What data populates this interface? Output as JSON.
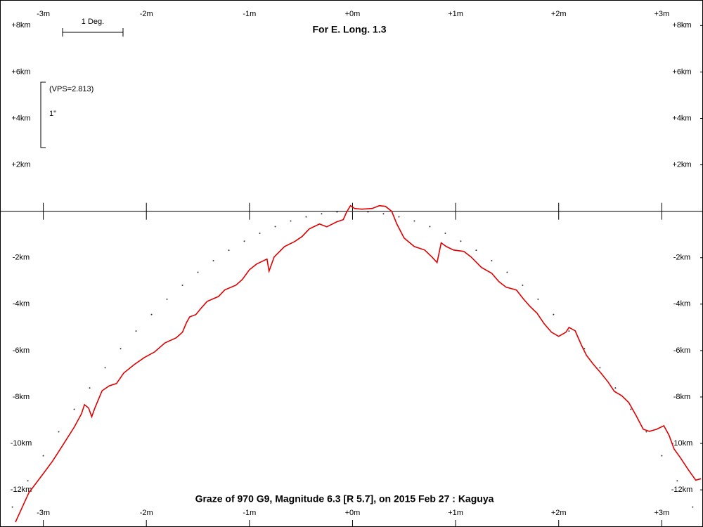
{
  "chart_data": {
    "type": "line",
    "title": "For E. Long. 1.3",
    "caption": "Graze of  970 G9,  Magnitude 6.3 [R 5.7],  on 2015 Feb 27  :  Kaguya",
    "scale_label": "1 Deg.",
    "vps_label": "(VPS=2.813)",
    "arcsec_label": "1\"",
    "xlim": [
      -3.42,
      3.4
    ],
    "ylim": [
      -13.6,
      9.1
    ],
    "xticks": [
      {
        "value": -3,
        "label": "-3m"
      },
      {
        "value": -2,
        "label": "-2m"
      },
      {
        "value": -1,
        "label": "-1m"
      },
      {
        "value": 0,
        "label": "+0m"
      },
      {
        "value": 1,
        "label": "+1m"
      },
      {
        "value": 2,
        "label": "+2m"
      },
      {
        "value": 3,
        "label": "+3m"
      }
    ],
    "yticks": [
      {
        "value": 8,
        "label": "+8km"
      },
      {
        "value": 6,
        "label": "+6km"
      },
      {
        "value": 4,
        "label": "+4km"
      },
      {
        "value": 2,
        "label": "+2km"
      },
      {
        "value": -2,
        "label": "-2km"
      },
      {
        "value": -4,
        "label": "-4km"
      },
      {
        "value": -6,
        "label": "-6km"
      },
      {
        "value": -8,
        "label": "-8km"
      },
      {
        "value": -10,
        "label": "-10km"
      },
      {
        "value": -12,
        "label": "-12km"
      }
    ],
    "series": [
      {
        "color": "#e00000",
        "x": [
          -3.27,
          -3.14,
          -3.01,
          -2.91,
          -2.8,
          -2.7,
          -2.63,
          -2.6,
          -2.56,
          -2.53,
          -2.5,
          -2.43,
          -2.36,
          -2.29,
          -2.22,
          -2.12,
          -2.02,
          -1.92,
          -1.82,
          -1.71,
          -1.65,
          -1.61,
          -1.58,
          -1.52,
          -1.47,
          -1.41,
          -1.3,
          -1.24,
          -1.13,
          -1.07,
          -1.0,
          -0.93,
          -0.83,
          -0.81,
          -0.76,
          -0.66,
          -0.56,
          -0.49,
          -0.42,
          -0.32,
          -0.25,
          -0.15,
          -0.09,
          -0.06,
          -0.02,
          0.02,
          0.09,
          0.19,
          0.26,
          0.32,
          0.38,
          0.43,
          0.5,
          0.6,
          0.7,
          0.77,
          0.82,
          0.86,
          0.91,
          0.98,
          1.08,
          1.15,
          1.25,
          1.35,
          1.42,
          1.49,
          1.59,
          1.66,
          1.72,
          1.79,
          1.86,
          1.93,
          2.0,
          2.07,
          2.1,
          2.16,
          2.22,
          2.27,
          2.34,
          2.41,
          2.48,
          2.54,
          2.61,
          2.68,
          2.75,
          2.82,
          2.88,
          2.95,
          3.02,
          3.07,
          3.12,
          3.18,
          3.26,
          3.33,
          3.38
        ],
        "values": [
          -13.39,
          -12.12,
          -11.36,
          -10.76,
          -10.0,
          -9.3,
          -8.73,
          -8.33,
          -8.48,
          -8.85,
          -8.48,
          -7.73,
          -7.52,
          -7.42,
          -6.97,
          -6.61,
          -6.3,
          -6.06,
          -5.67,
          -5.45,
          -5.21,
          -4.79,
          -4.55,
          -4.45,
          -4.18,
          -3.88,
          -3.67,
          -3.39,
          -3.18,
          -2.94,
          -2.52,
          -2.27,
          -2.06,
          -2.58,
          -1.97,
          -1.52,
          -1.3,
          -1.09,
          -0.76,
          -0.55,
          -0.67,
          -0.45,
          -0.36,
          -0.06,
          0.24,
          0.12,
          0.09,
          0.12,
          0.24,
          0.21,
          0,
          -0.55,
          -1.15,
          -1.52,
          -1.67,
          -1.97,
          -2.21,
          -1.36,
          -1.52,
          -1.67,
          -1.73,
          -1.97,
          -2.42,
          -2.67,
          -3.03,
          -3.27,
          -3.39,
          -3.79,
          -4.09,
          -4.39,
          -4.85,
          -5.21,
          -5.39,
          -5.21,
          -5.0,
          -5.15,
          -5.76,
          -6.21,
          -6.61,
          -6.97,
          -7.36,
          -7.76,
          -7.94,
          -8.24,
          -8.79,
          -9.39,
          -9.48,
          -9.39,
          -9.24,
          -9.64,
          -10.24,
          -10.61,
          -11.15,
          -11.58,
          -11.52
        ]
      },
      {
        "color": "#333333",
        "x": [
          -3.3,
          -3.15,
          -3.0,
          -2.85,
          -2.7,
          -2.55,
          -2.4,
          -2.25,
          -2.1,
          -1.95,
          -1.8,
          -1.65,
          -1.5,
          -1.35,
          -1.2,
          -1.05,
          -0.9,
          -0.75,
          -0.6,
          -0.45,
          -0.3,
          -0.15,
          0,
          0.15,
          0.3,
          0.45,
          0.6,
          0.75,
          0.9,
          1.05,
          1.2,
          1.35,
          1.5,
          1.65,
          1.8,
          1.95,
          2.1,
          2.25,
          2.4,
          2.55,
          2.7,
          2.85,
          3.0,
          3.15,
          3.3
        ],
        "values": [
          -12.74,
          -11.61,
          -10.53,
          -9.5,
          -8.53,
          -7.61,
          -6.74,
          -5.92,
          -5.16,
          -4.45,
          -3.79,
          -3.19,
          -2.63,
          -2.13,
          -1.68,
          -1.29,
          -0.95,
          -0.66,
          -0.42,
          -0.24,
          -0.11,
          -0.03,
          0,
          -0.03,
          -0.11,
          -0.24,
          -0.42,
          -0.66,
          -0.95,
          -1.29,
          -1.68,
          -2.13,
          -2.63,
          -3.19,
          -3.79,
          -4.45,
          -5.16,
          -5.92,
          -6.74,
          -7.61,
          -8.53,
          -9.5,
          -10.53,
          -11.61,
          -12.74
        ]
      }
    ]
  }
}
